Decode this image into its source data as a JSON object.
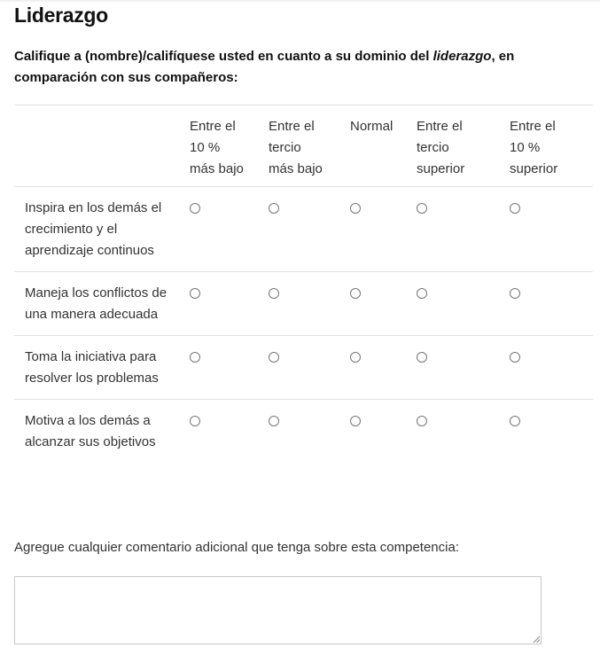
{
  "section_title": "Liderazgo",
  "question": {
    "prefix": "Califique a (nombre)/califíquese usted en cuanto a su dominio del ",
    "emphasis": "liderazgo",
    "suffix": ", en comparación con sus compañeros:"
  },
  "columns": [
    {
      "line1": "Entre el",
      "line2": "10 %",
      "line3": "más bajo"
    },
    {
      "line1": "Entre el",
      "line2": "tercio",
      "line3": "más bajo"
    },
    {
      "line1": "Normal",
      "line2": "",
      "line3": ""
    },
    {
      "line1": "Entre el",
      "line2": "tercio",
      "line3": "superior"
    },
    {
      "line1": "Entre el",
      "line2": "10 %",
      "line3": "superior"
    }
  ],
  "rows": [
    {
      "label": "Inspira en los demás el crecimiento y el aprendizaje continuos"
    },
    {
      "label": "Maneja los conflictos de una manera adecuada"
    },
    {
      "label": "Toma la iniciativa para resolver los problemas"
    },
    {
      "label": "Motiva a los demás a alcanzar sus objetivos"
    }
  ],
  "comment": {
    "label": "Agregue cualquier comentario adicional que tenga sobre esta competencia:",
    "value": ""
  }
}
